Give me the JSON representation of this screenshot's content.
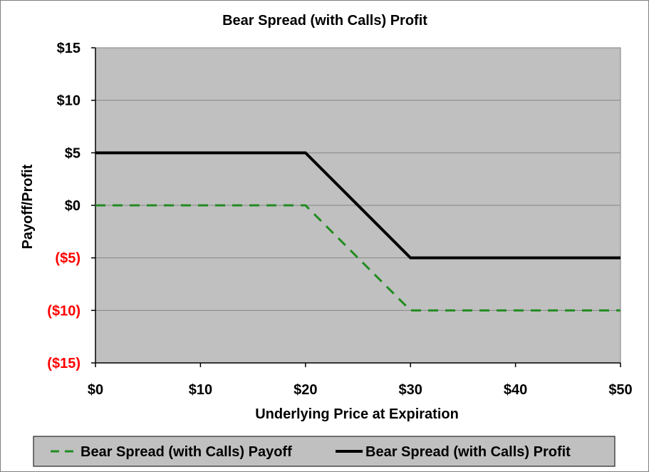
{
  "chart_data": {
    "type": "line",
    "title": "Bear Spread (with Calls) Profit",
    "xlabel": "Underlying Price at Expiration",
    "ylabel": "Payoff/Profit",
    "xlim": [
      0,
      50
    ],
    "ylim": [
      -15,
      15
    ],
    "x_ticks": [
      {
        "value": 0,
        "label": "$0"
      },
      {
        "value": 10,
        "label": "$10"
      },
      {
        "value": 20,
        "label": "$20"
      },
      {
        "value": 30,
        "label": "$30"
      },
      {
        "value": 40,
        "label": "$40"
      },
      {
        "value": 50,
        "label": "$50"
      }
    ],
    "y_ticks": [
      {
        "value": 15,
        "label": "$15",
        "color": "#000000"
      },
      {
        "value": 10,
        "label": "$10",
        "color": "#000000"
      },
      {
        "value": 5,
        "label": "$5",
        "color": "#000000"
      },
      {
        "value": 0,
        "label": "$0",
        "color": "#000000"
      },
      {
        "value": -5,
        "label": "($5)",
        "color": "#ff0000"
      },
      {
        "value": -10,
        "label": "($10)",
        "color": "#ff0000"
      },
      {
        "value": -15,
        "label": "($15)",
        "color": "#ff0000"
      }
    ],
    "grid": true,
    "plot_background": "#c0c0c0",
    "legend_position": "bottom",
    "series": [
      {
        "name": "Bear Spread (with Calls) Payoff",
        "color": "#228b22",
        "dash": "dashed",
        "points": [
          [
            0,
            0
          ],
          [
            20,
            0
          ],
          [
            30,
            -10
          ],
          [
            50,
            -10
          ]
        ]
      },
      {
        "name": "Bear Spread (with Calls) Profit",
        "color": "#000000",
        "dash": "solid",
        "points": [
          [
            0,
            5
          ],
          [
            20,
            5
          ],
          [
            30,
            -5
          ],
          [
            50,
            -5
          ]
        ]
      }
    ]
  }
}
